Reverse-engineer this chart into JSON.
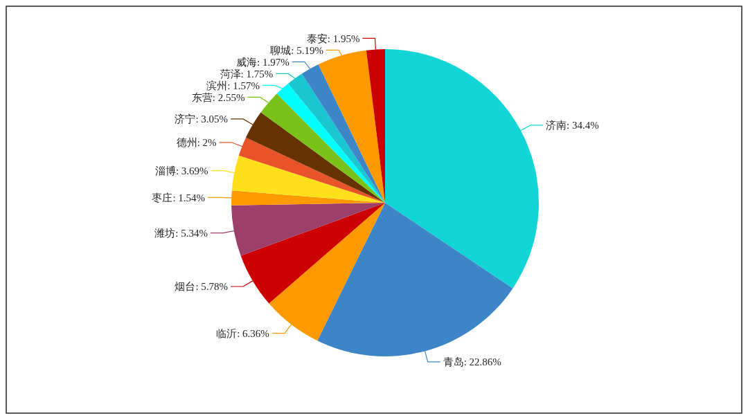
{
  "chart_data": {
    "type": "pie",
    "categories": [
      "济南",
      "青岛",
      "临沂",
      "烟台",
      "潍坊",
      "枣庄",
      "淄博",
      "德州",
      "济宁",
      "东营",
      "滨州",
      "菏泽",
      "威海",
      "聊城",
      "泰安"
    ],
    "values": [
      34.4,
      22.86,
      6.36,
      5.78,
      5.34,
      1.54,
      3.69,
      2,
      3.05,
      2.55,
      1.57,
      1.75,
      1.97,
      5.19,
      1.95
    ],
    "value_labels": [
      ": 34.4%",
      ": 22.86%",
      ": 6.36%",
      ": 5.78%",
      ": 5.34%",
      ": 1.54%",
      ": 3.69%",
      ": 2%",
      ": 3.05%",
      ": 2.55%",
      ": 1.57%",
      ": 1.75%",
      ": 1.97%",
      ": 5.19%",
      ": 1.95%"
    ],
    "colors": [
      "#12d6d6",
      "#3d85c6",
      "#ff9900",
      "#cc0000",
      "#9c3f6a",
      "#ff9900",
      "#ffe01a",
      "#e8532a",
      "#663300",
      "#7ac21a",
      "#00ffff",
      "#1ac6d0",
      "#3d85c6",
      "#ff9900",
      "#cc0000"
    ]
  }
}
